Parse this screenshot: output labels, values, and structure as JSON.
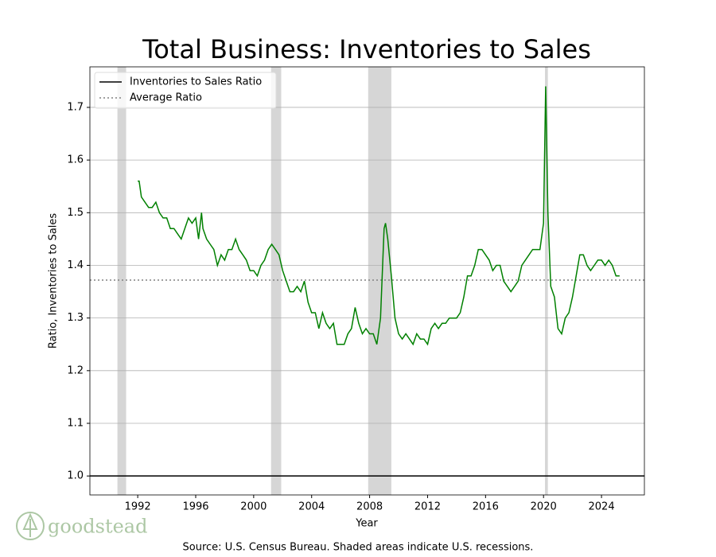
{
  "chart_data": {
    "type": "line",
    "title": "Total Business: Inventories to Sales",
    "x_label": "Year",
    "y_label": "Ratio, Inventories to Sales",
    "source": "Source: U.S. Census Bureau. Shaded areas indicate U.S. recessions.",
    "logo": "goodstead",
    "xlim": [
      1988.7,
      2026.96
    ],
    "ylim": [
      0.964,
      1.777
    ],
    "xticks": [
      1992,
      1996,
      2000,
      2004,
      2008,
      2012,
      2016,
      2020,
      2024
    ],
    "yticks": [
      {
        "value": 1,
        "label": "1.0"
      },
      1.1,
      1.2,
      1.3,
      1.4,
      1.5,
      1.6,
      1.7
    ],
    "grid": "y",
    "legend": "upper left",
    "recessions": [
      [
        1990.6,
        1991.2
      ],
      [
        2001.2,
        2001.9
      ],
      [
        2007.9,
        2009.5
      ],
      [
        2020.1,
        2020.3
      ]
    ],
    "reference_lines": [
      {
        "name": "Inventories to Sales Ratio",
        "value": 1.0,
        "color": "#000000",
        "style": "solid"
      },
      {
        "name": "Average Ratio",
        "value": 1.372,
        "color": "#808080",
        "style": "dotted"
      }
    ],
    "series": [
      {
        "color": "#008000",
        "x": [
          1992.0,
          1992.1,
          1992.25,
          1992.5,
          1992.75,
          1993.0,
          1993.25,
          1993.5,
          1993.75,
          1994.0,
          1994.25,
          1994.5,
          1994.75,
          1995.0,
          1995.25,
          1995.5,
          1995.75,
          1996.0,
          1996.2,
          1996.4,
          1996.5,
          1996.75,
          1997.0,
          1997.25,
          1997.5,
          1997.75,
          1998.0,
          1998.25,
          1998.5,
          1998.75,
          1999.0,
          1999.25,
          1999.5,
          1999.75,
          2000.0,
          2000.25,
          2000.5,
          2000.75,
          2001.0,
          2001.25,
          2001.5,
          2001.75,
          2002.0,
          2002.25,
          2002.5,
          2002.75,
          2003.0,
          2003.25,
          2003.5,
          2003.75,
          2004.0,
          2004.25,
          2004.5,
          2004.75,
          2005.0,
          2005.25,
          2005.5,
          2005.75,
          2006.0,
          2006.25,
          2006.5,
          2006.75,
          2007.0,
          2007.25,
          2007.5,
          2007.75,
          2008.0,
          2008.25,
          2008.5,
          2008.75,
          2009.0,
          2009.1,
          2009.25,
          2009.5,
          2009.75,
          2010.0,
          2010.25,
          2010.5,
          2010.75,
          2011.0,
          2011.25,
          2011.5,
          2011.75,
          2012.0,
          2012.25,
          2012.5,
          2012.75,
          2013.0,
          2013.25,
          2013.5,
          2013.75,
          2014.0,
          2014.25,
          2014.5,
          2014.75,
          2015.0,
          2015.25,
          2015.5,
          2015.75,
          2016.0,
          2016.25,
          2016.5,
          2016.75,
          2017.0,
          2017.25,
          2017.5,
          2017.75,
          2018.0,
          2018.25,
          2018.5,
          2018.75,
          2019.0,
          2019.25,
          2019.5,
          2019.75,
          2020.0,
          2020.15,
          2020.3,
          2020.5,
          2020.75,
          2021.0,
          2021.25,
          2021.5,
          2021.75,
          2022.0,
          2022.25,
          2022.5,
          2022.75,
          2023.0,
          2023.25,
          2023.5,
          2023.75,
          2024.0,
          2024.25,
          2024.5,
          2024.75,
          2025.0,
          2025.25
        ],
        "values": [
          1.56,
          1.56,
          1.53,
          1.52,
          1.51,
          1.51,
          1.52,
          1.5,
          1.49,
          1.49,
          1.47,
          1.47,
          1.46,
          1.45,
          1.47,
          1.49,
          1.48,
          1.49,
          1.45,
          1.5,
          1.47,
          1.45,
          1.44,
          1.43,
          1.4,
          1.42,
          1.41,
          1.43,
          1.43,
          1.45,
          1.43,
          1.42,
          1.41,
          1.39,
          1.39,
          1.38,
          1.4,
          1.41,
          1.43,
          1.44,
          1.43,
          1.42,
          1.39,
          1.37,
          1.35,
          1.35,
          1.36,
          1.35,
          1.37,
          1.33,
          1.31,
          1.31,
          1.28,
          1.31,
          1.29,
          1.28,
          1.29,
          1.25,
          1.25,
          1.25,
          1.27,
          1.28,
          1.32,
          1.29,
          1.27,
          1.28,
          1.27,
          1.27,
          1.25,
          1.3,
          1.47,
          1.48,
          1.45,
          1.38,
          1.3,
          1.27,
          1.26,
          1.27,
          1.26,
          1.25,
          1.27,
          1.26,
          1.26,
          1.25,
          1.28,
          1.29,
          1.28,
          1.29,
          1.29,
          1.3,
          1.3,
          1.3,
          1.31,
          1.34,
          1.38,
          1.38,
          1.4,
          1.43,
          1.43,
          1.42,
          1.41,
          1.39,
          1.4,
          1.4,
          1.37,
          1.36,
          1.35,
          1.36,
          1.37,
          1.4,
          1.41,
          1.42,
          1.43,
          1.43,
          1.43,
          1.48,
          1.74,
          1.5,
          1.36,
          1.34,
          1.28,
          1.27,
          1.3,
          1.31,
          1.34,
          1.38,
          1.42,
          1.42,
          1.4,
          1.39,
          1.4,
          1.41,
          1.41,
          1.4,
          1.41,
          1.4,
          1.38,
          1.38
        ]
      }
    ]
  }
}
